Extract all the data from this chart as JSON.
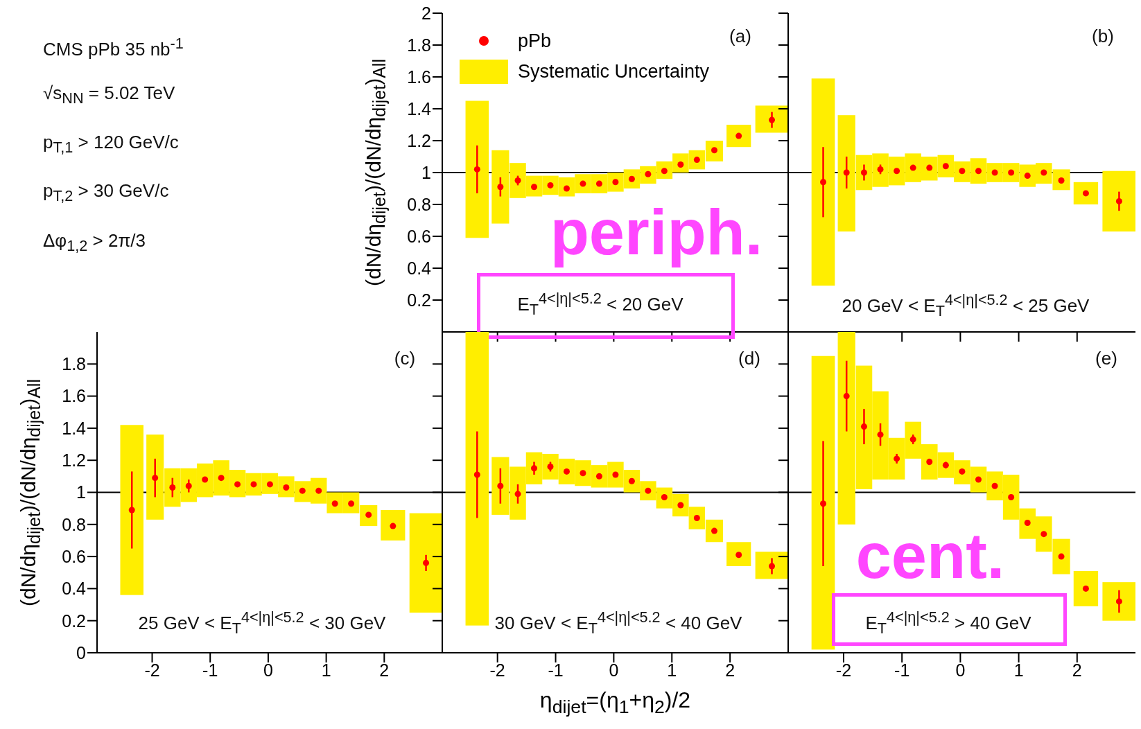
{
  "chart_data": [
    {
      "type": "scatter",
      "ylabel": "(dN/dη$_{dijet}$)/(dN/dη$_{dijet}$)$_{All}$",
      "annotations": [
        "CMS pPb 35 nb$^{-1}$",
        "√s$_{NN}$ = 5.02 TeV",
        "p$_{T,1}$ > 120 GeV/c",
        "p$_{T,2}$ > 30 GeV/c",
        "Δφ$_{1,2}$ > 2π/3",
        "(a)",
        "E$_{T}$$^{4<|η|<5.2}$ < 20 GeV",
        "periph."
      ],
      "x": [
        -2.35,
        -1.95,
        -1.65,
        -1.37,
        -1.09,
        -0.81,
        -0.53,
        -0.25,
        0.03,
        0.31,
        0.59,
        0.87,
        1.15,
        1.43,
        1.73,
        2.15,
        2.72
      ],
      "series": [
        {
          "name": "pPb",
          "color": "#ff0000",
          "values": [
            1.02,
            0.91,
            0.95,
            0.91,
            0.92,
            0.9,
            0.93,
            0.93,
            0.94,
            0.96,
            0.99,
            1.01,
            1.05,
            1.08,
            1.14,
            1.23,
            1.33
          ],
          "errors": [
            0.15,
            0.06,
            0.03,
            null,
            null,
            null,
            null,
            null,
            null,
            null,
            null,
            null,
            null,
            null,
            null,
            null,
            0.05
          ]
        },
        {
          "name": "Systematic Uncertainty",
          "type": "bar",
          "color": "#ffee00",
          "base": [
            0.59,
            0.68,
            0.84,
            0.85,
            0.86,
            0.85,
            0.87,
            0.87,
            0.88,
            0.9,
            0.93,
            0.96,
            1.0,
            1.02,
            1.07,
            1.16,
            1.25
          ],
          "values": [
            0.86,
            0.46,
            0.22,
            0.13,
            0.12,
            0.12,
            0.12,
            0.12,
            0.12,
            0.12,
            0.11,
            0.11,
            0.12,
            0.12,
            0.13,
            0.14,
            0.17
          ]
        }
      ],
      "xlim": [
        -2.95,
        3
      ],
      "xticks": [
        -2,
        -1,
        0,
        1,
        2
      ],
      "ylim": [
        0,
        2
      ],
      "yticks": [
        0.2,
        0.4,
        0.6,
        0.8,
        1,
        1.2,
        1.4,
        1.6,
        1.8,
        2
      ],
      "tick_labels": "y",
      "marker": "circle",
      "legend": "top left",
      "ref_lines": [
        {
          "axis": "y",
          "value": 1,
          "color": "#000000"
        }
      ]
    },
    {
      "type": "scatter",
      "annotations": [
        "(b)",
        "20 GeV < E$_{T}$$^{4<|η|<5.2}$ < 25 GeV"
      ],
      "x": [
        -2.35,
        -1.95,
        -1.65,
        -1.37,
        -1.09,
        -0.81,
        -0.53,
        -0.25,
        0.03,
        0.31,
        0.59,
        0.87,
        1.15,
        1.43,
        1.73,
        2.15,
        2.72
      ],
      "series": [
        {
          "color": "#ff0000",
          "values": [
            0.94,
            1.0,
            1.0,
            1.02,
            1.01,
            1.03,
            1.03,
            1.04,
            1.01,
            1.01,
            1.0,
            1.0,
            0.98,
            1.0,
            0.95,
            0.87,
            0.82
          ],
          "errors": [
            0.22,
            0.1,
            0.05,
            0.03,
            null,
            null,
            null,
            null,
            null,
            null,
            null,
            null,
            null,
            null,
            null,
            null,
            0.06
          ]
        },
        {
          "type": "bar",
          "color": "#ffee00",
          "base": [
            0.29,
            0.63,
            0.89,
            0.91,
            0.92,
            0.94,
            0.95,
            0.97,
            0.94,
            0.93,
            0.94,
            0.94,
            0.91,
            0.93,
            0.89,
            0.8,
            0.63
          ],
          "values": [
            1.3,
            0.73,
            0.22,
            0.21,
            0.18,
            0.18,
            0.15,
            0.14,
            0.13,
            0.16,
            0.12,
            0.12,
            0.14,
            0.13,
            0.13,
            0.14,
            0.38
          ]
        }
      ],
      "xlim": [
        -2.95,
        3
      ],
      "xticks": [
        -2,
        -1,
        0,
        1,
        2
      ],
      "ylim": [
        0,
        2
      ],
      "yticks": [
        0.2,
        0.4,
        0.6,
        0.8,
        1,
        1.2,
        1.4,
        1.6,
        1.8,
        2
      ],
      "tick_labels": false,
      "marker": "circle",
      "ref_lines": [
        {
          "axis": "y",
          "value": 1,
          "color": "#000000"
        }
      ]
    },
    {
      "type": "scatter",
      "ylabel": "(dN/dη$_{dijet}$)/(dN/dη$_{dijet}$)$_{All}$",
      "annotations": [
        "(c)",
        "25 GeV < E$_{T}$$^{4<|η|<5.2}$ < 30 GeV"
      ],
      "x": [
        -2.35,
        -1.95,
        -1.65,
        -1.37,
        -1.09,
        -0.81,
        -0.53,
        -0.25,
        0.03,
        0.31,
        0.59,
        0.87,
        1.15,
        1.43,
        1.73,
        2.15,
        2.72
      ],
      "series": [
        {
          "color": "#ff0000",
          "values": [
            0.89,
            1.09,
            1.03,
            1.04,
            1.08,
            1.09,
            1.05,
            1.05,
            1.05,
            1.03,
            1.01,
            1.01,
            0.93,
            0.93,
            0.86,
            0.79,
            0.56
          ],
          "errors": [
            0.24,
            0.12,
            0.06,
            0.04,
            null,
            null,
            null,
            null,
            null,
            null,
            null,
            null,
            null,
            null,
            null,
            null,
            0.05
          ]
        },
        {
          "type": "bar",
          "color": "#ffee00",
          "base": [
            0.36,
            0.83,
            0.91,
            0.94,
            0.97,
            0.98,
            0.97,
            0.98,
            0.99,
            0.97,
            0.94,
            0.93,
            0.87,
            0.87,
            0.79,
            0.7,
            0.25
          ],
          "values": [
            1.06,
            0.53,
            0.24,
            0.21,
            0.21,
            0.22,
            0.17,
            0.14,
            0.13,
            0.13,
            0.13,
            0.16,
            0.13,
            0.13,
            0.13,
            0.19,
            0.62
          ]
        }
      ],
      "xlim": [
        -2.95,
        3
      ],
      "xticks": [
        -2,
        -1,
        0,
        1,
        2
      ],
      "ylim": [
        0,
        2
      ],
      "yticks": [
        0,
        0.2,
        0.4,
        0.6,
        0.8,
        1,
        1.2,
        1.4,
        1.6,
        1.8
      ],
      "marker": "circle",
      "ref_lines": [
        {
          "axis": "y",
          "value": 1,
          "color": "#000000"
        }
      ]
    },
    {
      "type": "scatter",
      "xlabel": "η$_{dijet}$=(η$_{1}$+η$_{2}$)/2",
      "annotations": [
        "(d)",
        "30 GeV < E$_{T}$$^{4<|η|<5.2}$ < 40 GeV"
      ],
      "x": [
        -2.35,
        -1.95,
        -1.65,
        -1.37,
        -1.09,
        -0.81,
        -0.53,
        -0.25,
        0.03,
        0.31,
        0.59,
        0.87,
        1.15,
        1.43,
        1.73,
        2.15,
        2.72
      ],
      "series": [
        {
          "color": "#ff0000",
          "values": [
            1.11,
            1.04,
            0.99,
            1.15,
            1.16,
            1.13,
            1.12,
            1.1,
            1.11,
            1.07,
            1.01,
            0.97,
            0.92,
            0.84,
            0.76,
            0.61,
            0.54
          ],
          "errors": [
            0.27,
            0.11,
            0.06,
            0.04,
            0.03,
            null,
            null,
            null,
            null,
            null,
            null,
            null,
            null,
            null,
            null,
            null,
            0.05
          ]
        },
        {
          "type": "bar",
          "color": "#ffee00",
          "base": [
            0.17,
            0.86,
            0.83,
            1.05,
            1.08,
            1.05,
            1.04,
            1.03,
            1.03,
            1.0,
            0.95,
            0.9,
            0.85,
            0.77,
            0.69,
            0.54,
            0.46
          ],
          "values": [
            1.83,
            0.36,
            0.33,
            0.2,
            0.16,
            0.16,
            0.16,
            0.14,
            0.16,
            0.14,
            0.12,
            0.13,
            0.14,
            0.14,
            0.14,
            0.15,
            0.17
          ]
        }
      ],
      "xlim": [
        -2.95,
        3
      ],
      "xticks": [
        -2,
        -1,
        0,
        1,
        2
      ],
      "ylim": [
        0,
        2
      ],
      "yticks": [
        0,
        0.2,
        0.4,
        0.6,
        0.8,
        1,
        1.2,
        1.4,
        1.6,
        1.8
      ],
      "tick_labels": "x",
      "marker": "circle",
      "ref_lines": [
        {
          "axis": "y",
          "value": 1,
          "color": "#000000"
        }
      ]
    },
    {
      "type": "scatter",
      "annotations": [
        "(e)",
        "E$_{T}$$^{4<|η|<5.2}$ > 40 GeV",
        "cent."
      ],
      "x": [
        -2.35,
        -1.95,
        -1.65,
        -1.37,
        -1.09,
        -0.81,
        -0.53,
        -0.25,
        0.03,
        0.31,
        0.59,
        0.87,
        1.15,
        1.43,
        1.73,
        2.15,
        2.72
      ],
      "series": [
        {
          "color": "#ff0000",
          "values": [
            0.93,
            1.6,
            1.41,
            1.36,
            1.21,
            1.33,
            1.19,
            1.17,
            1.13,
            1.08,
            1.04,
            0.97,
            0.81,
            0.74,
            0.6,
            0.4,
            0.32
          ],
          "errors": [
            0.39,
            0.22,
            0.11,
            0.07,
            0.03,
            0.03,
            0.02,
            0.02,
            null,
            null,
            null,
            null,
            null,
            null,
            null,
            null,
            0.07
          ]
        },
        {
          "type": "bar",
          "color": "#ffee00",
          "base": [
            0.02,
            0.8,
            1.02,
            1.08,
            1.08,
            1.21,
            1.08,
            1.09,
            1.05,
            1.0,
            0.95,
            0.83,
            0.71,
            0.63,
            0.49,
            0.29,
            0.2
          ],
          "values": [
            1.83,
            1.2,
            0.77,
            0.55,
            0.26,
            0.23,
            0.22,
            0.16,
            0.15,
            0.16,
            0.18,
            0.28,
            0.19,
            0.22,
            0.22,
            0.22,
            0.24
          ]
        }
      ],
      "xlim": [
        -2.95,
        3
      ],
      "xticks": [
        -2,
        -1,
        0,
        1,
        2
      ],
      "ylim": [
        0,
        2
      ],
      "yticks": [
        0,
        0.2,
        0.4,
        0.6,
        0.8,
        1,
        1.2,
        1.4,
        1.6,
        1.8
      ],
      "tick_labels": "x",
      "marker": "circle",
      "ref_lines": [
        {
          "axis": "y",
          "value": 1,
          "color": "#000000"
        }
      ]
    }
  ]
}
